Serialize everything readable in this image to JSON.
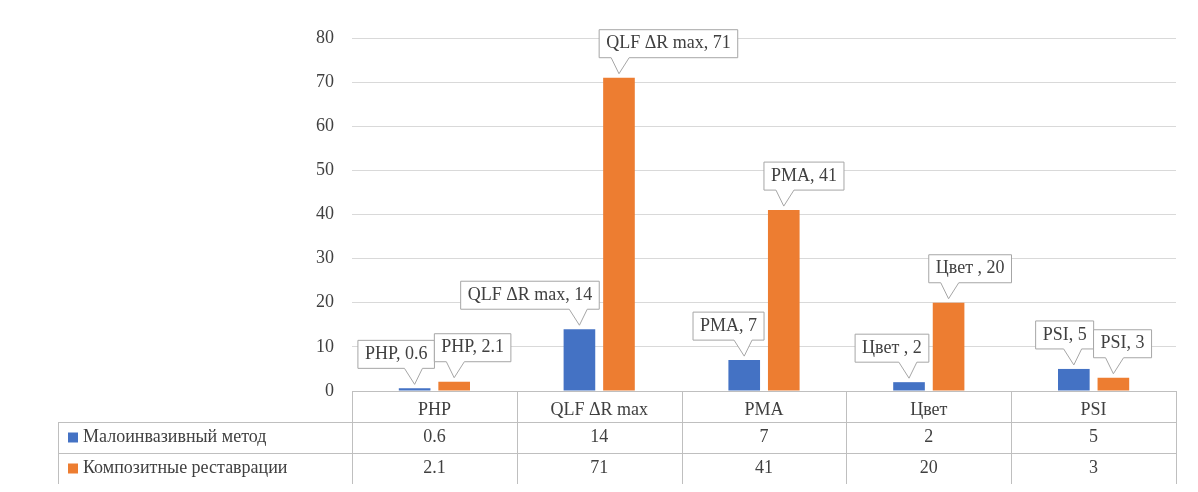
{
  "chart_data": {
    "type": "bar",
    "categories": [
      "PHP",
      "QLF ΔR max",
      "PMA",
      "Цвет",
      "PSI"
    ],
    "series": [
      {
        "name": "Малоинвазивный метод",
        "color": "#4472c4",
        "values": [
          0.6,
          14,
          7,
          2,
          5
        ]
      },
      {
        "name": "Композитные реставрации",
        "color": "#ed7d31",
        "values": [
          2.1,
          71,
          41,
          20,
          3
        ]
      }
    ],
    "annotations": [
      {
        "text": "PHP, 0.6",
        "x": "PHP",
        "y": 0.6
      },
      {
        "text": "QLF ΔR max, 14",
        "x": "QLF ΔR max",
        "y": 14
      },
      {
        "text": "PMA, 7",
        "x": "PMA",
        "y": 7
      },
      {
        "text": "Цвет , 2",
        "x": "Цвет",
        "y": 2
      },
      {
        "text": "PSI, 5",
        "x": "PSI",
        "y": 5
      },
      {
        "text": "PHP, 2.1",
        "x": "PHP",
        "y": 2.1
      },
      {
        "text": "QLF ΔR max, 71",
        "x": "QLF ΔR max",
        "y": 71
      },
      {
        "text": "PMA, 41",
        "x": "PMA",
        "y": 41
      },
      {
        "text": "Цвет , 20",
        "x": "Цвет",
        "y": 20
      },
      {
        "text": "PSI, 3",
        "x": "PSI",
        "y": 3
      }
    ],
    "ylim": [
      0,
      80
    ],
    "yticks": [
      0,
      10,
      20,
      30,
      40,
      50,
      60,
      70,
      80
    ],
    "grid": "y",
    "legend": "left",
    "data_labels": true
  }
}
